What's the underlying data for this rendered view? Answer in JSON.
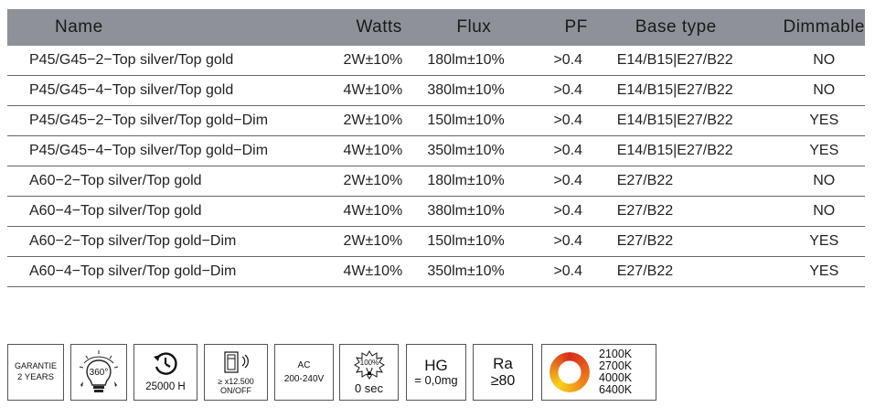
{
  "table": {
    "headers": [
      "Name",
      "Watts",
      "Flux",
      "PF",
      "Base type",
      "Dimmable"
    ],
    "rows": [
      [
        "P45/G45−2−Top silver/Top gold",
        "2W±10%",
        "180lm±10%",
        ">0.4",
        "E14/B15|E27/B22",
        "NO"
      ],
      [
        "P45/G45−4−Top silver/Top gold",
        "4W±10%",
        "380lm±10%",
        ">0.4",
        "E14/B15|E27/B22",
        "NO"
      ],
      [
        "P45/G45−2−Top silver/Top gold−Dim",
        "2W±10%",
        "150lm±10%",
        ">0.4",
        "E14/B15|E27/B22",
        "YES"
      ],
      [
        "P45/G45−4−Top silver/Top gold−Dim",
        "4W±10%",
        "350lm±10%",
        ">0.4",
        "E14/B15|E27/B22",
        "YES"
      ],
      [
        "A60−2−Top silver/Top  gold",
        "2W±10%",
        "180lm±10%",
        ">0.4",
        "E27/B22",
        "NO"
      ],
      [
        "A60−4−Top silver/Top  gold",
        "4W±10%",
        "380lm±10%",
        ">0.4",
        "E27/B22",
        "NO"
      ],
      [
        "A60−2−Top silver/Top  gold−Dim",
        "2W±10%",
        "150lm±10%",
        ">0.4",
        "E27/B22",
        "YES"
      ],
      [
        "A60−4−Top silver/Top  gold−Dim",
        "4W±10%",
        "350lm±10%",
        ">0.4",
        "E27/B22",
        "YES"
      ]
    ]
  },
  "icons": {
    "guarantee": {
      "line1": "GARANTIE",
      "line2": "2 YEARS"
    },
    "beam": {
      "label": "360°",
      "icon": "bulb-beam-icon"
    },
    "lifetime": {
      "label": "25000 H",
      "icon": "clock-icon"
    },
    "switching": {
      "line1": "≥ x12.500",
      "line2": "ON/OFF",
      "icon": "switch-icon"
    },
    "voltage": {
      "line1": "AC",
      "line2": "200-240V"
    },
    "startup": {
      "badge": "100%",
      "label": "0 sec",
      "icon": "instant-start-icon"
    },
    "mercury": {
      "line1": "HG",
      "line2": "= 0,0mg"
    },
    "cri": {
      "line1": "Ra",
      "line2": "≥80"
    },
    "cct": {
      "values": [
        "2100K",
        "2700K",
        "4000K",
        "6400K"
      ],
      "icon": "color-temperature-ring-icon"
    }
  }
}
